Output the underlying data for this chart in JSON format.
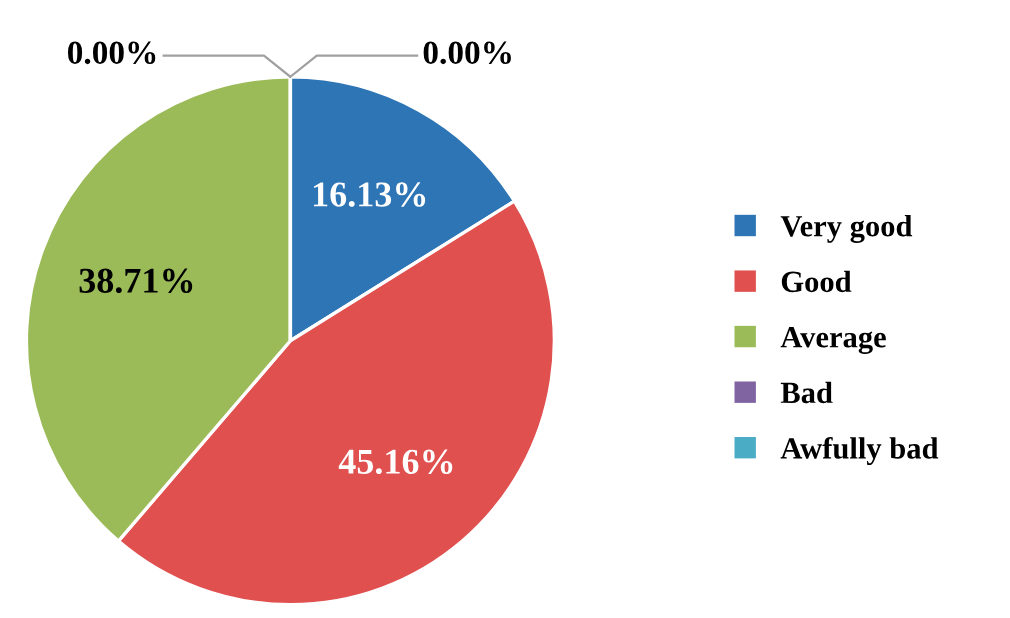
{
  "chart_data": {
    "type": "pie",
    "categories": [
      "Very good",
      "Good",
      "Average",
      "Bad",
      "Awfully bad"
    ],
    "values": [
      16.13,
      45.16,
      38.71,
      0,
      0
    ],
    "colors": [
      "#2e75b6",
      "#e0504f",
      "#9bbb59",
      "#8064a2",
      "#4bacc6"
    ],
    "value_labels": [
      "16.13%",
      "45.16%",
      "38.71%",
      "0.00%",
      "0.00%"
    ],
    "legend": "right"
  }
}
